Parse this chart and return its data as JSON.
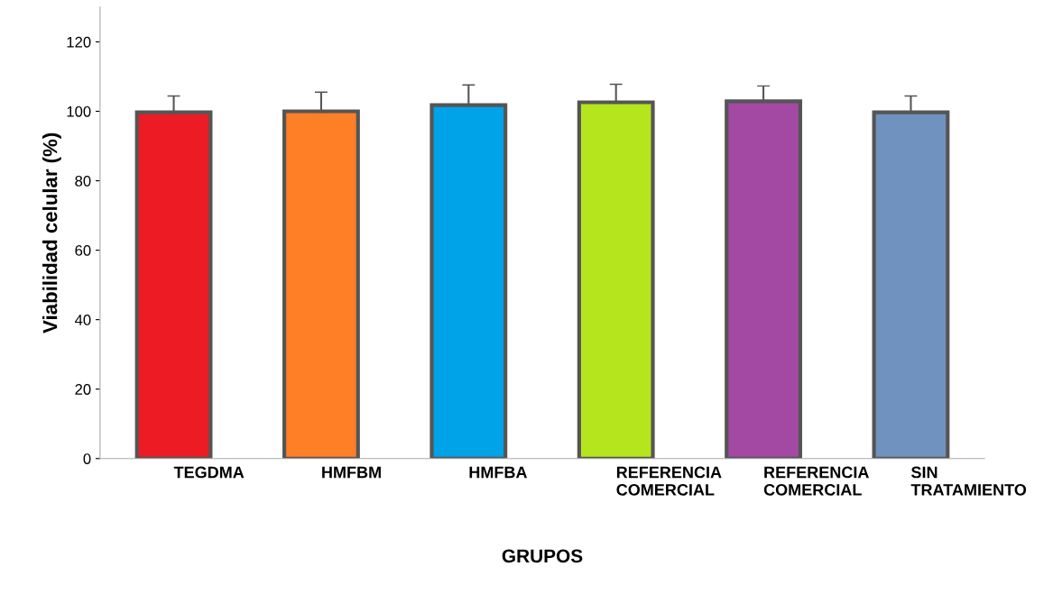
{
  "chart_data": {
    "type": "bar",
    "xlabel": "GRUPOS",
    "ylabel": "Viabilidad celular (%)",
    "categories": [
      "TEGDMA",
      "HMFBM",
      "HMFBA",
      "REFERENCIA\nCOMERCIAL",
      "REFERENCIA\nCOMERCIAL",
      "SIN\nTRATAMIENTO"
    ],
    "values": [
      99.7,
      100,
      101.8,
      102.6,
      102.9,
      99.7
    ],
    "errors": [
      4.7,
      5.5,
      5.8,
      5.2,
      4.4,
      4.7
    ],
    "colors": [
      "#ed1c24",
      "#ff7f27",
      "#00a2e8",
      "#b5e61d",
      "#a349a4",
      "#7092be"
    ],
    "ylim": [
      0,
      130
    ],
    "yticks": [
      0,
      20,
      40,
      60,
      80,
      100,
      120
    ],
    "grid": false,
    "legend": false
  }
}
